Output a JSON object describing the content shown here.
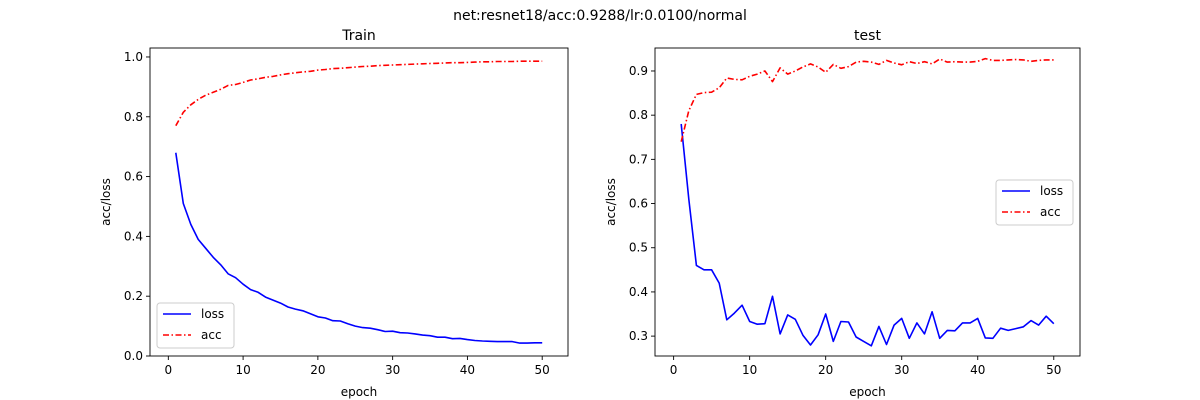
{
  "suptitle": "net:resnet18/acc:0.9288/lr:0.0100/normal",
  "chart_data": [
    {
      "type": "line",
      "title": "Train",
      "xlabel": "epoch",
      "ylabel": "acc/loss",
      "xlim": [
        -2.45,
        53.45
      ],
      "ylim": [
        0.0,
        1.03
      ],
      "xticks": [
        0,
        10,
        20,
        30,
        40,
        50
      ],
      "yticks": [
        0.0,
        0.2,
        0.4,
        0.6,
        0.8,
        1.0
      ],
      "ytick_labels": [
        "0.0",
        "0.2",
        "0.4",
        "0.6",
        "0.8",
        "1.0"
      ],
      "legend_position": "lower-left",
      "x": [
        1,
        2,
        3,
        4,
        5,
        6,
        7,
        8,
        9,
        10,
        11,
        12,
        13,
        14,
        15,
        16,
        17,
        18,
        19,
        20,
        21,
        22,
        23,
        24,
        25,
        26,
        27,
        28,
        29,
        30,
        31,
        32,
        33,
        34,
        35,
        36,
        37,
        38,
        39,
        40,
        41,
        42,
        43,
        44,
        45,
        46,
        47,
        48,
        49,
        50
      ],
      "series": [
        {
          "name": "loss",
          "color": "#0000ff",
          "style": "solid",
          "values": [
            0.68,
            0.51,
            0.44,
            0.39,
            0.36,
            0.33,
            0.305,
            0.275,
            0.262,
            0.24,
            0.222,
            0.213,
            0.197,
            0.187,
            0.177,
            0.164,
            0.157,
            0.151,
            0.141,
            0.131,
            0.127,
            0.118,
            0.117,
            0.108,
            0.1,
            0.095,
            0.093,
            0.088,
            0.082,
            0.083,
            0.078,
            0.077,
            0.074,
            0.07,
            0.068,
            0.063,
            0.063,
            0.058,
            0.059,
            0.055,
            0.052,
            0.05,
            0.049,
            0.048,
            0.048,
            0.048,
            0.043,
            0.043,
            0.044,
            0.044
          ]
        },
        {
          "name": "acc",
          "color": "#ff0000",
          "style": "dashdot",
          "values": [
            0.77,
            0.815,
            0.84,
            0.858,
            0.872,
            0.882,
            0.892,
            0.905,
            0.908,
            0.915,
            0.923,
            0.927,
            0.932,
            0.935,
            0.94,
            0.944,
            0.947,
            0.95,
            0.952,
            0.956,
            0.958,
            0.961,
            0.962,
            0.964,
            0.966,
            0.968,
            0.969,
            0.971,
            0.972,
            0.973,
            0.974,
            0.975,
            0.976,
            0.977,
            0.978,
            0.979,
            0.98,
            0.981,
            0.981,
            0.982,
            0.983,
            0.984,
            0.984,
            0.985,
            0.985,
            0.985,
            0.986,
            0.986,
            0.986,
            0.986
          ]
        }
      ]
    },
    {
      "type": "line",
      "title": "test",
      "xlabel": "epoch",
      "ylabel": "acc/loss",
      "xlim": [
        -2.45,
        53.45
      ],
      "ylim": [
        0.255,
        0.952
      ],
      "xticks": [
        0,
        10,
        20,
        30,
        40,
        50
      ],
      "yticks": [
        0.3,
        0.4,
        0.5,
        0.6,
        0.7,
        0.8,
        0.9
      ],
      "ytick_labels": [
        "0.3",
        "0.4",
        "0.5",
        "0.6",
        "0.7",
        "0.8",
        "0.9"
      ],
      "legend_position": "center-right",
      "x": [
        1,
        2,
        3,
        4,
        5,
        6,
        7,
        8,
        9,
        10,
        11,
        12,
        13,
        14,
        15,
        16,
        17,
        18,
        19,
        20,
        21,
        22,
        23,
        24,
        25,
        26,
        27,
        28,
        29,
        30,
        31,
        32,
        33,
        34,
        35,
        36,
        37,
        38,
        39,
        40,
        41,
        42,
        43,
        44,
        45,
        46,
        47,
        48,
        49,
        50
      ],
      "series": [
        {
          "name": "loss",
          "color": "#0000ff",
          "style": "solid",
          "values": [
            0.78,
            0.61,
            0.46,
            0.45,
            0.45,
            0.42,
            0.337,
            0.352,
            0.37,
            0.333,
            0.327,
            0.328,
            0.39,
            0.305,
            0.348,
            0.338,
            0.302,
            0.28,
            0.303,
            0.35,
            0.288,
            0.333,
            0.332,
            0.298,
            0.288,
            0.278,
            0.322,
            0.281,
            0.325,
            0.34,
            0.295,
            0.33,
            0.305,
            0.355,
            0.295,
            0.313,
            0.312,
            0.33,
            0.33,
            0.34,
            0.296,
            0.295,
            0.318,
            0.313,
            0.317,
            0.321,
            0.335,
            0.325,
            0.345,
            0.328
          ]
        },
        {
          "name": "acc",
          "color": "#ff0000",
          "style": "dashdot",
          "values": [
            0.74,
            0.81,
            0.847,
            0.851,
            0.852,
            0.862,
            0.884,
            0.881,
            0.88,
            0.888,
            0.893,
            0.9,
            0.876,
            0.907,
            0.893,
            0.9,
            0.909,
            0.916,
            0.909,
            0.897,
            0.915,
            0.906,
            0.91,
            0.92,
            0.922,
            0.92,
            0.915,
            0.924,
            0.918,
            0.914,
            0.921,
            0.917,
            0.921,
            0.916,
            0.927,
            0.92,
            0.921,
            0.92,
            0.92,
            0.922,
            0.928,
            0.924,
            0.924,
            0.925,
            0.926,
            0.925,
            0.922,
            0.924,
            0.925,
            0.925
          ]
        }
      ]
    }
  ]
}
